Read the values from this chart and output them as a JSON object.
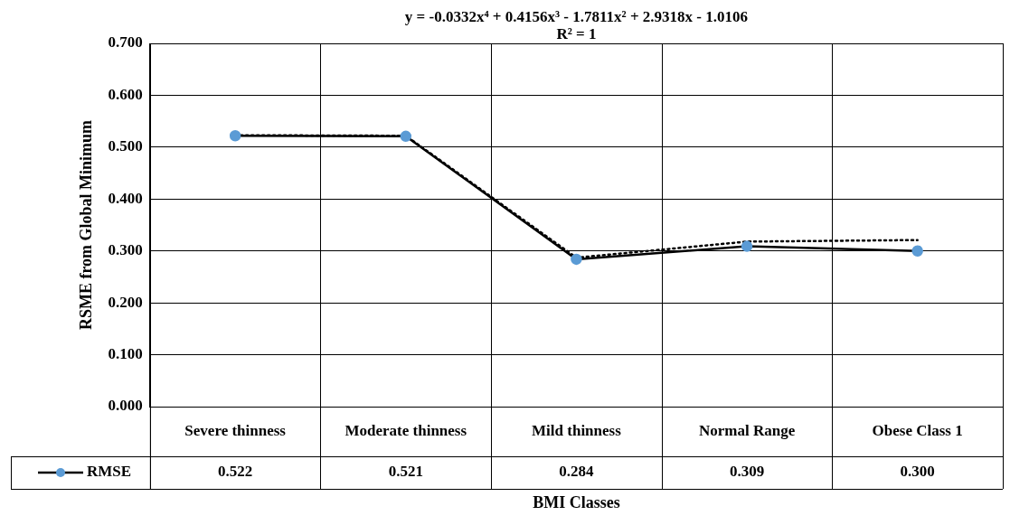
{
  "chart_data": {
    "type": "line",
    "xlabel": "BMI Classes",
    "ylabel": "RSME from Global Minimum",
    "categories": [
      "Severe thinness",
      "Moderate thinness",
      "Mild thinness",
      "Normal Range",
      "Obese Class 1"
    ],
    "series": [
      {
        "name": "RMSE",
        "color": "#000000",
        "colors": [
          "#5b9bd5",
          "#5b9bd5",
          "#5b9bd5",
          "#5b9bd5",
          "#5b9bd5"
        ],
        "marker": "circle",
        "values": [
          0.522,
          0.521,
          0.284,
          0.309,
          0.3
        ],
        "value_labels": [
          "0.522",
          "0.521",
          "0.284",
          "0.309",
          "0.300"
        ]
      },
      {
        "type": "line",
        "color": "#000000",
        "line_style": "dotted",
        "marker": "none",
        "values": [
          0.523,
          0.522,
          0.287,
          0.318,
          0.321
        ]
      }
    ],
    "ylim": [
      0,
      0.7
    ],
    "yticks": [
      {
        "value": 0,
        "label": "0.000"
      },
      {
        "value": 0.1,
        "label": "0.100"
      },
      {
        "value": 0.2,
        "label": "0.200"
      },
      {
        "value": 0.3,
        "label": "0.300"
      },
      {
        "value": 0.4,
        "label": "0.400"
      },
      {
        "value": 0.5,
        "label": "0.500"
      },
      {
        "value": 0.6,
        "label": "0.600"
      },
      {
        "value": 0.7,
        "label": "0.700"
      }
    ],
    "grid": true,
    "legend": "bottom left",
    "annotations": [
      "y = -0.0332x⁴ + 0.4156x³ - 1.7811x² + 2.9318x - 1.0106",
      "R² = 1"
    ]
  }
}
